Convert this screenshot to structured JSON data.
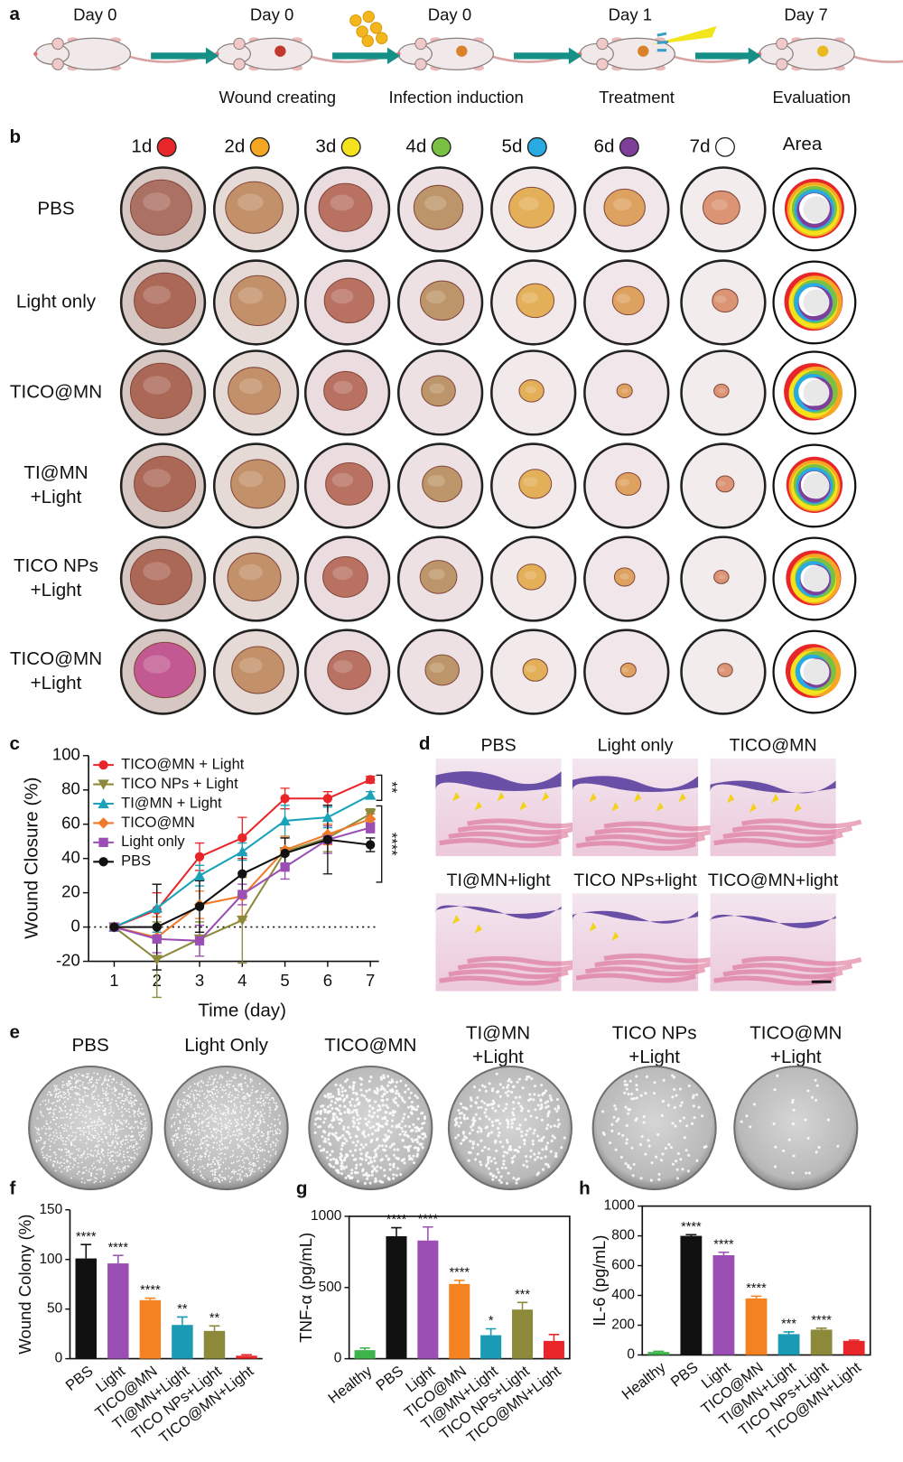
{
  "panel_a": {
    "label": "a",
    "steps": [
      {
        "day": "Day 0"
      },
      {
        "day": "Day 0",
        "caption": "Wound creating"
      },
      {
        "day": "Day 0",
        "caption": "Infection induction"
      },
      {
        "day": "Day 1",
        "caption": "Treatment"
      },
      {
        "day": "Day 7",
        "caption": "Evaluation"
      }
    ]
  },
  "panel_b": {
    "label": "b",
    "days": [
      {
        "label": "1d",
        "color": "#e8262a"
      },
      {
        "label": "2d",
        "color": "#f5a623"
      },
      {
        "label": "3d",
        "color": "#f4e31c"
      },
      {
        "label": "4d",
        "color": "#7ac143"
      },
      {
        "label": "5d",
        "color": "#29abe2"
      },
      {
        "label": "6d",
        "color": "#7e3f98"
      },
      {
        "label": "7d",
        "color": "#ffffff"
      }
    ],
    "area_label": "Area",
    "rows": [
      [
        "PBS"
      ],
      [
        "Light only"
      ],
      [
        "TICO@MN"
      ],
      [
        "TI@MN",
        "+Light"
      ],
      [
        "TICO NPs",
        "+Light"
      ],
      [
        "TICO@MN",
        "+Light"
      ]
    ]
  },
  "chart_data": [
    {
      "type": "line",
      "panel_label": "c",
      "x": [
        1,
        2,
        3,
        4,
        5,
        6,
        7
      ],
      "xlim": [
        0.4,
        7.2
      ],
      "xticks": [
        1,
        2,
        3,
        4,
        5,
        6,
        7
      ],
      "ylim": [
        -20,
        100
      ],
      "yticks": [
        -20,
        0,
        20,
        40,
        60,
        80,
        100
      ],
      "x_label": "Time (day)",
      "y_label": "Wound Closure (%)",
      "zero_line": true,
      "legend": "upper left",
      "series": [
        {
          "name": "TICO@MN + Light",
          "color": "#e8262a",
          "marker": "circle",
          "values": [
            0,
            10,
            41,
            52,
            75,
            75,
            86
          ],
          "errors": [
            0,
            10,
            8,
            12,
            6,
            4,
            2
          ]
        },
        {
          "name": "TICO NPs + Light",
          "color": "#8c8a3a",
          "marker": "triangle-down",
          "values": [
            0,
            -19,
            -7,
            4,
            44,
            52,
            66
          ],
          "errors": [
            0,
            22,
            10,
            25,
            8,
            8,
            3
          ]
        },
        {
          "name": "TI@MN + Light",
          "color": "#1aa3b8",
          "marker": "triangle-up",
          "values": [
            0,
            11,
            30,
            44,
            62,
            64,
            77
          ],
          "errors": [
            0,
            14,
            6,
            5,
            9,
            6,
            2
          ]
        },
        {
          "name": "TICO@MN",
          "color": "#f07a2a",
          "marker": "diamond",
          "values": [
            0,
            -6,
            13,
            18,
            45,
            54,
            63
          ],
          "errors": [
            0,
            12,
            8,
            14,
            8,
            6,
            3
          ]
        },
        {
          "name": "Light only",
          "color": "#9b4fb5",
          "marker": "square",
          "values": [
            0,
            -7,
            -8,
            19,
            35,
            51,
            58
          ],
          "errors": [
            0,
            8,
            9,
            6,
            7,
            8,
            3
          ]
        },
        {
          "name": "PBS",
          "color": "#111111",
          "marker": "circle",
          "values": [
            0,
            0,
            12,
            31,
            43,
            51,
            48
          ],
          "errors": [
            0,
            25,
            15,
            12,
            9,
            20,
            4
          ]
        }
      ],
      "annotations": [
        "**",
        "****"
      ]
    },
    {
      "type": "bar",
      "panel_label": "f",
      "categories": [
        "PBS",
        "Light",
        "TICO@MN",
        "TI@MN+Light",
        "TICO NPs+Light",
        "TICO@MN+Light"
      ],
      "values": [
        101,
        96,
        59,
        34,
        28,
        3
      ],
      "errors": [
        14,
        8,
        2,
        8,
        5,
        1
      ],
      "colors": [
        "#111111",
        "#9b4fb5",
        "#f58220",
        "#1a9bb3",
        "#8c8a3a",
        "#e8262a"
      ],
      "annotations": [
        "****",
        "****",
        "****",
        "**",
        "**",
        null
      ],
      "ylim": [
        0,
        150
      ],
      "yticks": [
        0,
        50,
        100,
        150
      ],
      "y_label": "Wound Colony (%)",
      "frame": "axes"
    },
    {
      "type": "bar",
      "panel_label": "g",
      "categories": [
        "Healthy",
        "PBS",
        "Light",
        "TICO@MN",
        "TI@MN+Light",
        "TICO NPs+Light",
        "TICO@MN+Light"
      ],
      "values": [
        60,
        860,
        830,
        525,
        165,
        345,
        125
      ],
      "errors": [
        15,
        60,
        95,
        25,
        45,
        50,
        45
      ],
      "colors": [
        "#3cb44b",
        "#111111",
        "#9b4fb5",
        "#f58220",
        "#1a9bb3",
        "#8c8a3a",
        "#e8262a"
      ],
      "annotations": [
        null,
        "****",
        "****",
        "****",
        "*",
        "***",
        null
      ],
      "ylim": [
        0,
        1000
      ],
      "yticks": [
        0,
        500,
        1000
      ],
      "y_label": "TNF-α (pg/mL)",
      "frame": "box"
    },
    {
      "type": "bar",
      "panel_label": "h",
      "categories": [
        "Healthy",
        "PBS",
        "Light",
        "TICO@MN",
        "TI@MN+Light",
        "TICO NPs+Light",
        "TICO@MN+Light"
      ],
      "values": [
        20,
        800,
        670,
        380,
        140,
        170,
        95
      ],
      "errors": [
        5,
        8,
        20,
        15,
        15,
        10,
        5
      ],
      "colors": [
        "#3cb44b",
        "#111111",
        "#9b4fb5",
        "#f58220",
        "#1a9bb3",
        "#8c8a3a",
        "#e8262a"
      ],
      "annotations": [
        null,
        "****",
        "****",
        "****",
        "***",
        "****",
        null
      ],
      "ylim": [
        0,
        1000
      ],
      "yticks": [
        0,
        200,
        400,
        600,
        800,
        1000
      ],
      "y_label": "IL-6 (pg/mL)",
      "frame": "box"
    }
  ],
  "panel_d": {
    "label": "d",
    "images": [
      "PBS",
      "Light only",
      "TICO@MN",
      "TI@MN+light",
      "TICO NPs+light",
      "TICO@MN+light"
    ]
  },
  "panel_e": {
    "label": "e",
    "dishes": [
      [
        "PBS"
      ],
      [
        "Light Only"
      ],
      [
        "TICO@MN"
      ],
      [
        "TI@MN",
        "+Light"
      ],
      [
        "TICO NPs",
        "+Light"
      ],
      [
        "TICO@MN",
        "+Light"
      ]
    ]
  }
}
